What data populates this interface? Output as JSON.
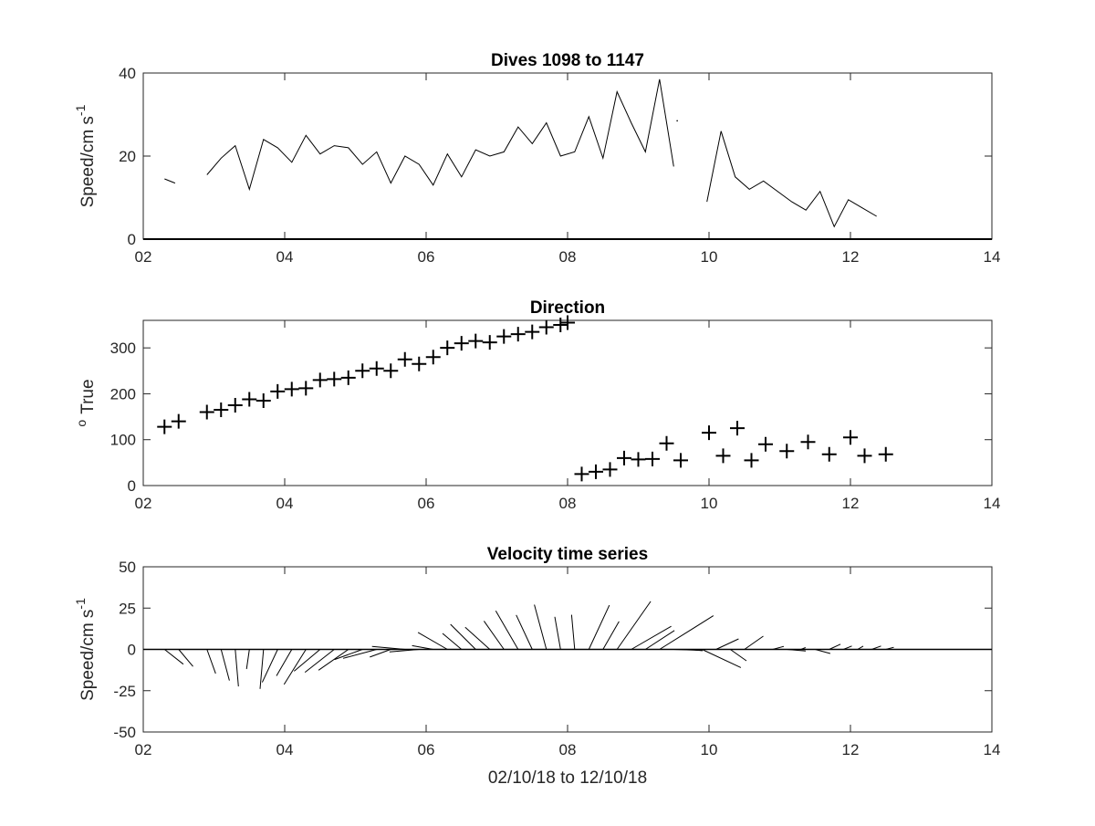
{
  "colors": {
    "axis": "#262626",
    "data": "#000000",
    "background": "#ffffff"
  },
  "chart_data": [
    {
      "type": "line",
      "title": "Dives 1098 to 1147",
      "xlabel": "",
      "ylabel": "Speed/cm s",
      "ylabel_superscript": "-1",
      "xlim": [
        2,
        14
      ],
      "ylim": [
        0,
        40
      ],
      "xticks": [
        "02",
        "04",
        "06",
        "08",
        "10",
        "12",
        "14"
      ],
      "yticks": [
        "0",
        "20",
        "40"
      ],
      "grid": false,
      "series": [
        {
          "x": [
            2.3,
            2.45
          ],
          "y": [
            14.5,
            13.5
          ]
        },
        {
          "x": [
            2.9,
            3.1,
            3.3,
            3.5,
            3.7,
            3.9,
            4.1,
            4.3,
            4.5,
            4.7,
            4.9,
            5.1,
            5.3,
            5.5,
            5.7,
            5.9,
            6.1,
            6.3,
            6.5,
            6.7,
            6.9,
            7.1,
            7.3,
            7.5,
            7.7,
            7.9,
            8.1,
            8.3,
            8.5,
            8.7,
            8.9,
            9.1,
            9.3,
            9.5
          ],
          "y": [
            15.5,
            19.5,
            22.5,
            12.0,
            24.0,
            22.0,
            18.5,
            25.0,
            20.5,
            22.5,
            22.0,
            18.0,
            21.0,
            13.5,
            20.0,
            18.0,
            13.0,
            20.5,
            15.0,
            21.5,
            20.0,
            21.0,
            27.0,
            23.0,
            28.0,
            20.0,
            21.0,
            29.5,
            19.5,
            35.5,
            28.0,
            21.0,
            38.5,
            17.5
          ]
        },
        {
          "x": [
            9.55
          ],
          "y": [
            28.5
          ]
        },
        {
          "x": [
            9.97,
            10.17,
            10.37,
            10.57,
            10.77,
            11.17,
            11.37,
            11.57,
            11.77,
            11.97,
            12.17,
            12.37
          ],
          "y": [
            9.0,
            26.0,
            15.0,
            12.0,
            14.0,
            9.0,
            7.0,
            11.5,
            3.0,
            9.5,
            7.5,
            5.5
          ]
        }
      ]
    },
    {
      "type": "scatter",
      "title": "Direction",
      "xlabel": "",
      "ylabel": "True",
      "ylabel_superscript": "o",
      "marker": "+",
      "xlim": [
        2,
        14
      ],
      "ylim": [
        0,
        360
      ],
      "xticks": [
        "02",
        "04",
        "06",
        "08",
        "10",
        "12",
        "14"
      ],
      "yticks": [
        "0",
        "100",
        "200",
        "300"
      ],
      "grid": false,
      "series": [
        {
          "x": [
            2.3,
            2.5,
            2.9,
            3.1,
            3.3,
            3.5,
            3.7,
            3.9,
            4.1,
            4.3,
            4.5,
            4.7,
            4.9,
            5.1,
            5.3,
            5.5,
            5.7,
            5.9,
            6.1,
            6.3,
            6.5,
            6.7,
            6.9,
            7.1,
            7.3,
            7.5,
            7.7,
            7.9,
            8.0,
            8.2,
            8.4,
            8.6,
            8.8,
            9.0,
            9.2,
            9.4,
            9.6,
            10.0,
            10.2,
            10.4,
            10.6,
            10.8,
            11.1,
            11.4,
            11.7,
            12.0,
            12.2,
            12.5
          ],
          "y": [
            128,
            140,
            160,
            165,
            175,
            188,
            185,
            205,
            210,
            212,
            230,
            232,
            235,
            250,
            255,
            250,
            275,
            265,
            280,
            300,
            310,
            315,
            312,
            325,
            330,
            335,
            345,
            350,
            355,
            25,
            30,
            35,
            60,
            57,
            58,
            92,
            55,
            115,
            65,
            125,
            55,
            90,
            75,
            95,
            68,
            105,
            65,
            68
          ]
        }
      ]
    },
    {
      "type": "vector",
      "title": "Velocity time series",
      "xlabel": "02/10/18 to 12/10/18",
      "ylabel": "Speed/cm s",
      "ylabel_superscript": "-1",
      "xlim": [
        2,
        14
      ],
      "ylim": [
        -50,
        50
      ],
      "xticks": [
        "02",
        "04",
        "06",
        "08",
        "10",
        "12",
        "14"
      ],
      "yticks": [
        "50",
        "25",
        "0",
        "-25",
        "-50"
      ],
      "grid": false,
      "series": [
        {
          "x": [
            2.3,
            2.5,
            2.9,
            3.1,
            3.3,
            3.5,
            3.7,
            3.9,
            4.1,
            4.3,
            4.5,
            4.7,
            4.9,
            5.1,
            5.3,
            5.5,
            5.7,
            5.9,
            6.1,
            6.3,
            6.5,
            6.7,
            6.9,
            7.1,
            7.3,
            7.5,
            7.7,
            7.9,
            8.1,
            8.3,
            8.5,
            8.7,
            8.9,
            9.1,
            9.3,
            9.5,
            9.7,
            9.9,
            10.1,
            10.3,
            10.5,
            10.7,
            10.9,
            11.1,
            11.3,
            11.5,
            11.7,
            11.9,
            12.1,
            12.3,
            12.5
          ],
          "speed": [
            14.5,
            13.5,
            15.5,
            19.5,
            22.5,
            12.0,
            24.0,
            22.0,
            18.5,
            25.0,
            20.5,
            22.5,
            22.0,
            18.0,
            21.0,
            13.5,
            20.0,
            18.0,
            13.0,
            20.5,
            15.0,
            21.5,
            20.0,
            21.0,
            27.0,
            23.0,
            28.0,
            20.0,
            21.0,
            29.5,
            19.5,
            35.5,
            28.0,
            21.0,
            38.5,
            17.5,
            9.0,
            26.0,
            15.0,
            12.0,
            14.0,
            9.0,
            7.0,
            11.5,
            3.0,
            9.5,
            7.5,
            5.5,
            4.0,
            6.0,
            5.0
          ],
          "direction_deg_true": [
            128,
            140,
            160,
            165,
            175,
            188,
            185,
            205,
            210,
            212,
            230,
            232,
            235,
            250,
            255,
            250,
            275,
            265,
            280,
            300,
            310,
            315,
            312,
            325,
            330,
            335,
            345,
            350,
            355,
            25,
            30,
            35,
            60,
            57,
            58,
            92,
            95,
            115,
            65,
            125,
            55,
            90,
            75,
            95,
            68,
            105,
            65,
            68,
            60,
            70,
            75
          ]
        }
      ]
    }
  ]
}
